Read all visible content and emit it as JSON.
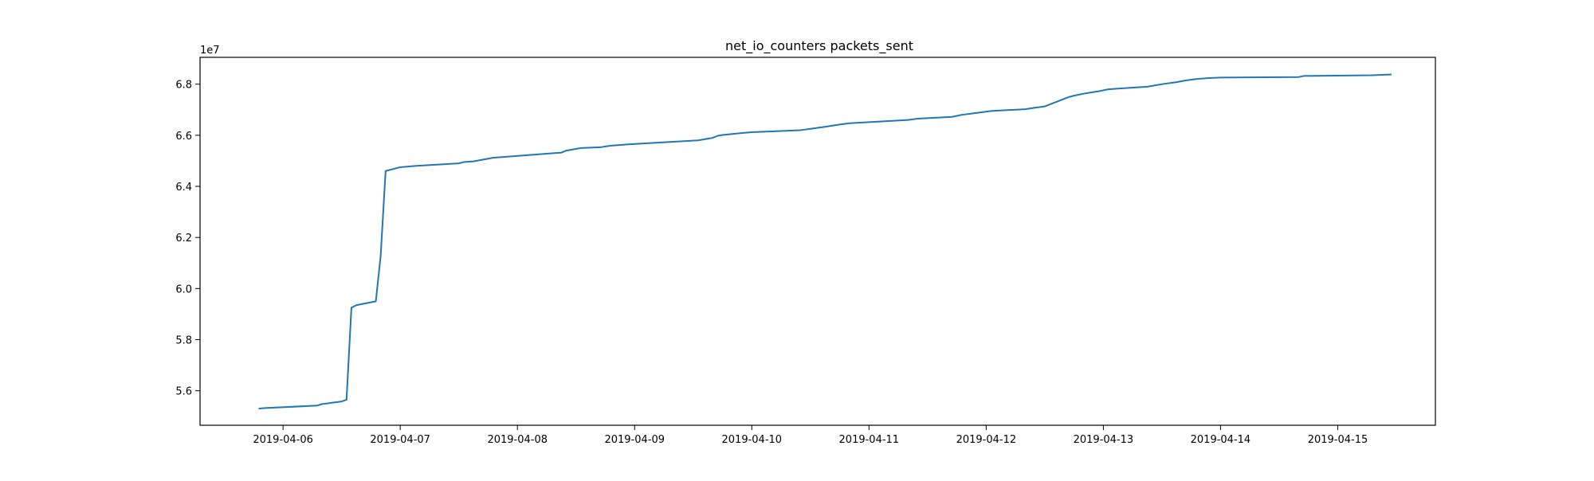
{
  "chart_data": {
    "type": "line",
    "title": "net_io_counters packets_sent",
    "xlabel": "",
    "ylabel": "",
    "y_offset_label": "1e7",
    "y_scale": 10000000,
    "xlim": [
      "2019-04-05T07:00:00",
      "2019-04-15T20:00:00"
    ],
    "ylim": [
      5.465,
      6.905
    ],
    "x_ticks": [
      "2019-04-06",
      "2019-04-07",
      "2019-04-08",
      "2019-04-09",
      "2019-04-10",
      "2019-04-11",
      "2019-04-12",
      "2019-04-13",
      "2019-04-14",
      "2019-04-15"
    ],
    "y_ticks": [
      "5.6",
      "5.8",
      "6.0",
      "6.2",
      "6.4",
      "6.6",
      "6.8"
    ],
    "grid": false,
    "legend": "none",
    "series": [
      {
        "color": "#1f77b4",
        "x": [
          "2019-04-05T19:00:00",
          "2019-04-05T20:00:00",
          "2019-04-06T07:00:00",
          "2019-04-06T08:00:00",
          "2019-04-06T12:00:00",
          "2019-04-06T13:00:00",
          "2019-04-06T14:00:00",
          "2019-04-06T15:00:00",
          "2019-04-06T19:00:00",
          "2019-04-06T20:00:00",
          "2019-04-06T21:00:00",
          "2019-04-07T00:00:00",
          "2019-04-07T03:00:00",
          "2019-04-07T12:00:00",
          "2019-04-07T13:00:00",
          "2019-04-07T15:00:00",
          "2019-04-07T17:00:00",
          "2019-04-07T19:00:00",
          "2019-04-08T06:00:00",
          "2019-04-08T09:00:00",
          "2019-04-08T10:00:00",
          "2019-04-08T13:00:00",
          "2019-04-08T17:00:00",
          "2019-04-08T19:00:00",
          "2019-04-08T23:00:00",
          "2019-04-09T13:00:00",
          "2019-04-09T16:00:00",
          "2019-04-09T17:00:00",
          "2019-04-09T18:00:00",
          "2019-04-09T22:00:00",
          "2019-04-10T00:00:00",
          "2019-04-10T10:00:00",
          "2019-04-10T15:00:00",
          "2019-04-10T16:00:00",
          "2019-04-10T18:00:00",
          "2019-04-10T20:00:00",
          "2019-04-11T08:00:00",
          "2019-04-11T10:00:00",
          "2019-04-11T17:00:00",
          "2019-04-11T19:00:00",
          "2019-04-11T21:00:00",
          "2019-04-12T01:00:00",
          "2019-04-12T08:00:00",
          "2019-04-12T10:00:00",
          "2019-04-12T12:00:00",
          "2019-04-12T17:00:00",
          "2019-04-12T18:00:00",
          "2019-04-12T20:00:00",
          "2019-04-12T23:00:00",
          "2019-04-13T01:00:00",
          "2019-04-13T09:00:00",
          "2019-04-13T12:00:00",
          "2019-04-13T15:00:00",
          "2019-04-13T17:00:00",
          "2019-04-13T19:00:00",
          "2019-04-13T21:00:00",
          "2019-04-14T00:00:00",
          "2019-04-14T16:00:00",
          "2019-04-14T17:00:00",
          "2019-04-15T07:00:00",
          "2019-04-15T11:00:00"
        ],
        "values": [
          5.53,
          5.532,
          5.542,
          5.548,
          5.558,
          5.565,
          5.925,
          5.935,
          5.95,
          6.13,
          6.46,
          6.475,
          6.48,
          6.49,
          6.495,
          6.498,
          6.505,
          6.512,
          6.528,
          6.532,
          6.54,
          6.55,
          6.553,
          6.559,
          6.565,
          6.58,
          6.59,
          6.598,
          6.601,
          6.609,
          6.612,
          6.62,
          6.633,
          6.636,
          6.642,
          6.647,
          6.66,
          6.665,
          6.672,
          6.68,
          6.685,
          6.695,
          6.702,
          6.708,
          6.713,
          6.75,
          6.755,
          6.763,
          6.772,
          6.78,
          6.79,
          6.8,
          6.808,
          6.815,
          6.82,
          6.823,
          6.826,
          6.828,
          6.832,
          6.835,
          6.838
        ]
      }
    ]
  }
}
